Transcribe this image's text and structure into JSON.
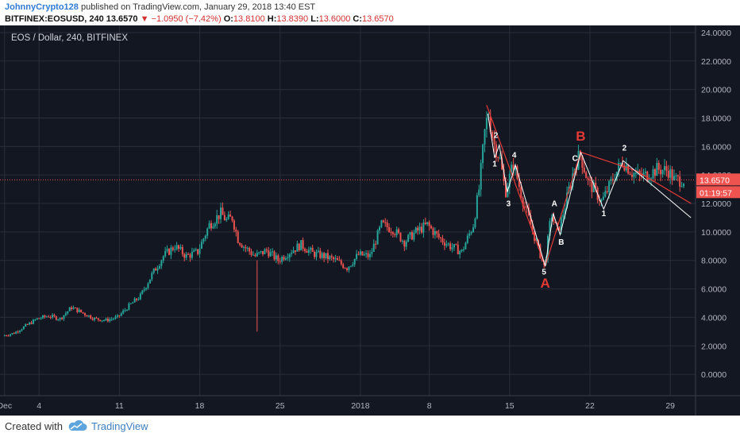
{
  "header": {
    "author": "JohnnyCrypto128",
    "published": " published on TradingView.com, January 29, 2018 13:40 EST",
    "symbol": "BITFINEX:EOSUSD, 240",
    "last": "13.6570",
    "change": "−1.0950 (−7.42%)",
    "o_label": "O:",
    "o_value": "13.8100",
    "h_label": "H:",
    "h_value": "13.8390",
    "l_label": "L:",
    "l_value": "13.6000",
    "c_label": "C:",
    "c_value": "13.6570"
  },
  "footer": {
    "created_with": "Created with",
    "brand": "TradingView",
    "logo_icon": "tradingview-cloud-icon"
  },
  "colors": {
    "bg": "#131722",
    "up": "#26a69a",
    "down": "#ef5350",
    "grid": "#2a2e39",
    "wave": "#ffffff",
    "wave_red": "#e53935",
    "price_line": "#ef5350",
    "label_bg": "#ef5350"
  },
  "chart_data": {
    "type": "candlestick",
    "title": "EOS / Dollar, 240, BITFINEX",
    "ylim": [
      -1.5,
      24.5
    ],
    "y_ticks": [
      "24.0000",
      "22.0000",
      "20.0000",
      "18.0000",
      "16.0000",
      "14.0000",
      "12.0000",
      "10.0000",
      "8.0000",
      "6.0000",
      "4.0000",
      "2.0000",
      "0.0000"
    ],
    "y_tick_values": [
      24,
      22,
      20,
      18,
      16,
      14,
      12,
      10,
      8,
      6,
      4,
      2,
      0
    ],
    "x_ticks": [
      "Dec",
      "4",
      "11",
      "18",
      "25",
      "2018",
      "8",
      "15",
      "22",
      "29"
    ],
    "x_tick_days": [
      0,
      3,
      10,
      17,
      24,
      31,
      37,
      44,
      51,
      58
    ],
    "x_range_days": [
      -0.4,
      60.2
    ],
    "last_price": "13.6570",
    "last_price_value": 13.657,
    "countdown": "01:19:57",
    "price_path": [
      [
        0,
        2.7
      ],
      [
        1,
        2.9
      ],
      [
        2,
        3.4
      ],
      [
        3,
        3.9
      ],
      [
        4,
        4.1
      ],
      [
        5,
        3.9
      ],
      [
        6,
        4.7
      ],
      [
        7,
        4.3
      ],
      [
        8,
        3.9
      ],
      [
        9,
        3.8
      ],
      [
        10,
        4.0
      ],
      [
        11,
        4.8
      ],
      [
        12,
        5.5
      ],
      [
        13,
        7.0
      ],
      [
        14,
        8.3
      ],
      [
        15,
        9.0
      ],
      [
        16,
        8.3
      ],
      [
        17,
        8.6
      ],
      [
        18,
        10.5
      ],
      [
        19,
        11.3
      ],
      [
        19.5,
        10.8
      ],
      [
        20,
        11.0
      ],
      [
        20.5,
        9.5
      ],
      [
        21,
        9.0
      ],
      [
        22,
        8.3
      ],
      [
        23,
        8.7
      ],
      [
        24,
        8.0
      ],
      [
        25,
        8.6
      ],
      [
        26,
        9.1
      ],
      [
        27,
        8.5
      ],
      [
        28,
        8.3
      ],
      [
        29,
        8.0
      ],
      [
        30,
        7.5
      ],
      [
        31,
        8.4
      ],
      [
        32,
        8.3
      ],
      [
        33,
        10.5
      ],
      [
        34,
        10.2
      ],
      [
        35,
        9.3
      ],
      [
        36,
        10.0
      ],
      [
        37,
        10.5
      ],
      [
        38,
        9.6
      ],
      [
        39,
        9.0
      ],
      [
        40,
        8.6
      ],
      [
        41,
        10.5
      ],
      [
        41.5,
        13.0
      ],
      [
        42,
        17.0
      ],
      [
        42.3,
        18.4
      ],
      [
        42.8,
        16.2
      ],
      [
        43.3,
        15.2
      ],
      [
        43.8,
        12.8
      ],
      [
        44.5,
        14.8
      ],
      [
        45.3,
        12.3
      ],
      [
        46,
        10.5
      ],
      [
        46.8,
        8.5
      ],
      [
        47.2,
        7.5
      ],
      [
        47.8,
        11.3
      ],
      [
        48.3,
        10.0
      ],
      [
        48.6,
        10.6
      ],
      [
        49.2,
        12.5
      ],
      [
        49.8,
        14.5
      ],
      [
        50.3,
        15.5
      ],
      [
        51,
        13.5
      ],
      [
        51.5,
        13.0
      ],
      [
        52.2,
        12.1
      ],
      [
        53.2,
        13.8
      ],
      [
        54,
        15.0
      ],
      [
        54.8,
        14.2
      ],
      [
        55.5,
        13.9
      ],
      [
        56.2,
        14.0
      ],
      [
        57,
        14.4
      ],
      [
        58,
        14.3
      ],
      [
        58.5,
        13.66
      ],
      [
        59.2,
        13.66
      ]
    ],
    "wick_spike": {
      "day": 22,
      "low": 3.0,
      "high": 8.0
    },
    "wave_labels": [
      {
        "text": "2",
        "day": 42.8,
        "price": 16.6,
        "color": "white"
      },
      {
        "text": "1",
        "day": 42.7,
        "price": 14.6,
        "color": "white"
      },
      {
        "text": "4",
        "day": 44.4,
        "price": 15.2,
        "color": "white"
      },
      {
        "text": "3",
        "day": 43.9,
        "price": 11.8,
        "color": "white"
      },
      {
        "text": "5",
        "day": 47.0,
        "price": 7.0,
        "color": "white"
      },
      {
        "text": "A",
        "day": 47.9,
        "price": 11.8,
        "color": "white"
      },
      {
        "text": "B",
        "day": 48.5,
        "price": 9.1,
        "color": "white"
      },
      {
        "text": "C",
        "day": 49.7,
        "price": 15.0,
        "color": "white"
      },
      {
        "text": "2",
        "day": 54.0,
        "price": 15.7,
        "color": "white"
      },
      {
        "text": "1",
        "day": 52.2,
        "price": 11.1,
        "color": "white"
      },
      {
        "text": "A",
        "day": 47.1,
        "price": 6.1,
        "color": "red",
        "big": true
      },
      {
        "text": "B",
        "day": 50.2,
        "price": 16.4,
        "color": "red",
        "big": true
      }
    ],
    "white_lines": [
      [
        [
          42.1,
          18.3
        ],
        [
          42.7,
          15.2
        ],
        [
          43.1,
          16.1
        ],
        [
          43.8,
          12.8
        ],
        [
          44.5,
          14.7
        ],
        [
          47.1,
          7.6
        ]
      ],
      [
        [
          47.1,
          7.6
        ],
        [
          47.8,
          11.3
        ],
        [
          48.4,
          9.8
        ],
        [
          50.2,
          15.6
        ]
      ],
      [
        [
          50.2,
          15.6
        ],
        [
          52.2,
          11.6
        ],
        [
          53.9,
          15.0
        ],
        [
          59.8,
          11.0
        ]
      ]
    ],
    "red_lines": [
      [
        [
          42.0,
          18.9
        ],
        [
          47.1,
          7.6
        ],
        [
          50.2,
          15.6
        ]
      ],
      [
        [
          50.2,
          15.6
        ],
        [
          55.0,
          14.3
        ]
      ],
      [
        [
          55.0,
          14.3
        ],
        [
          59.8,
          12.0
        ]
      ]
    ]
  }
}
